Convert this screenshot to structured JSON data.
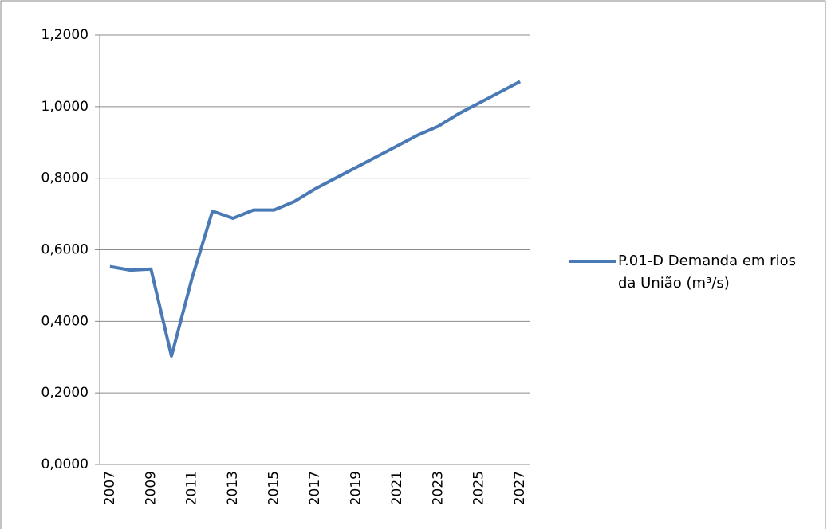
{
  "chart_data": {
    "type": "line",
    "categories": [
      "2007",
      null,
      "2009",
      null,
      "2011",
      null,
      "2013",
      null,
      "2015",
      null,
      "2017",
      null,
      "2019",
      null,
      "2021",
      null,
      "2023",
      null,
      "2025",
      null,
      "2027"
    ],
    "series": [
      {
        "name": "P.01-D Demanda em rios da União (m³/s)",
        "color": "#4a7ab5",
        "values": [
          0.553,
          0.543,
          0.546,
          0.303,
          0.52,
          0.708,
          0.688,
          0.711,
          0.711,
          0.735,
          0.77,
          0.8,
          0.83,
          0.86,
          0.89,
          0.92,
          0.945,
          0.98,
          1.01,
          1.04,
          1.07
        ]
      }
    ],
    "ylim": [
      0,
      1.2
    ],
    "yticks": [
      {
        "value": 0,
        "label": "0,0000"
      },
      {
        "value": 0.2,
        "label": "0,2000"
      },
      {
        "value": 0.4,
        "label": "0,4000"
      },
      {
        "value": 0.6,
        "label": "0,6000"
      },
      {
        "value": 0.8,
        "label": "0,8000"
      },
      {
        "value": 1.0,
        "label": "1,0000"
      },
      {
        "value": 1.2,
        "label": "1,2000"
      }
    ],
    "grid": true,
    "legend": "right"
  }
}
